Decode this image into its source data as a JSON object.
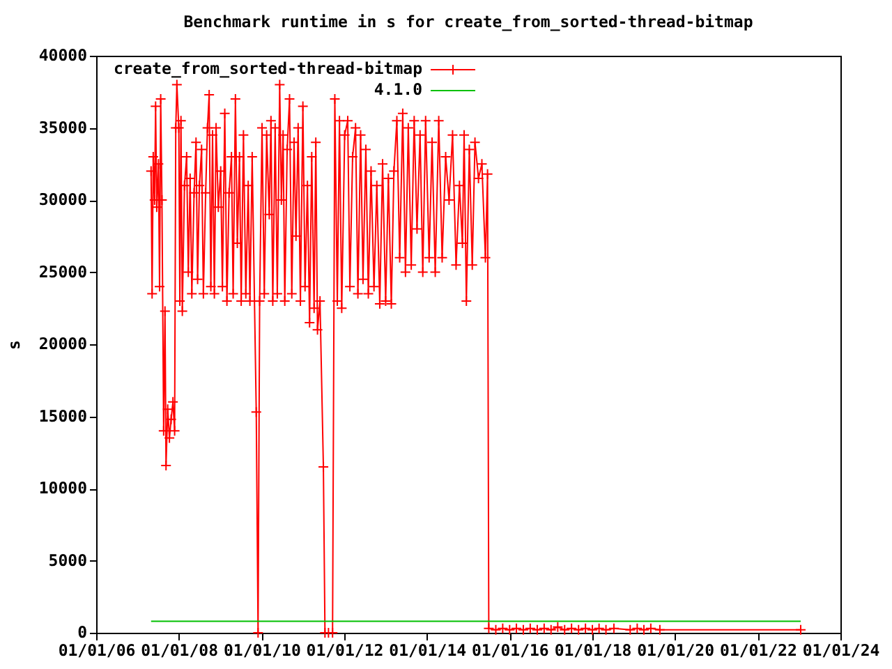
{
  "chart_data": {
    "type": "line",
    "title": "Benchmark runtime in s for create_from_sorted-thread-bitmap",
    "ylabel": "s",
    "xlim": [
      "2006-01-01",
      "2024-01-01"
    ],
    "xticks": [
      {
        "value": "2006-01-01",
        "label": "01/01/06"
      },
      {
        "value": "2008-01-01",
        "label": "01/01/08"
      },
      {
        "value": "2010-01-01",
        "label": "01/01/10"
      },
      {
        "value": "2012-01-01",
        "label": "01/01/12"
      },
      {
        "value": "2014-01-01",
        "label": "01/01/14"
      },
      {
        "value": "2016-01-01",
        "label": "01/01/16"
      },
      {
        "value": "2018-01-01",
        "label": "01/01/18"
      },
      {
        "value": "2020-01-01",
        "label": "01/01/20"
      },
      {
        "value": "2022-01-01",
        "label": "01/01/22"
      },
      {
        "value": "2024-01-01",
        "label": "01/01/24"
      }
    ],
    "ylim": [
      0,
      40000
    ],
    "yticks": [
      0,
      5000,
      10000,
      15000,
      20000,
      25000,
      30000,
      35000,
      40000
    ],
    "grid": false,
    "legend": "top left",
    "line_style": "solid",
    "series": [
      {
        "name": "create_from_sorted-thread-bitmap",
        "color": "#ff0000",
        "marker": "cross",
        "x": [
          "2007-05-01",
          "2007-05-10",
          "2007-05-20",
          "2007-06-01",
          "2007-06-10",
          "2007-06-20",
          "2007-07-05",
          "2007-07-15",
          "2007-07-25",
          "2007-08-05",
          "2007-08-20",
          "2007-09-01",
          "2007-09-10",
          "2007-09-25",
          "2007-10-10",
          "2007-10-25",
          "2007-11-10",
          "2007-11-25",
          "2007-12-05",
          "2007-12-15",
          "2008-01-01",
          "2008-01-10",
          "2008-01-20",
          "2008-02-01",
          "2008-02-20",
          "2008-03-10",
          "2008-03-25",
          "2008-04-10",
          "2008-04-25",
          "2008-05-15",
          "2008-06-01",
          "2008-06-15",
          "2008-07-01",
          "2008-07-20",
          "2008-08-05",
          "2008-08-25",
          "2008-09-10",
          "2008-09-25",
          "2008-10-10",
          "2008-10-25",
          "2008-11-10",
          "2008-11-25",
          "2008-12-15",
          "2009-01-05",
          "2009-01-20",
          "2009-02-10",
          "2009-03-01",
          "2009-03-20",
          "2009-04-10",
          "2009-04-25",
          "2009-05-15",
          "2009-06-01",
          "2009-06-20",
          "2009-07-05",
          "2009-07-25",
          "2009-08-15",
          "2009-09-05",
          "2009-09-20",
          "2009-10-10",
          "2009-11-15",
          "2009-12-01",
          "2009-12-15",
          "2010-01-05",
          "2010-01-25",
          "2010-02-15",
          "2010-03-10",
          "2010-03-25",
          "2010-04-10",
          "2010-05-01",
          "2010-05-20",
          "2010-06-10",
          "2010-06-25",
          "2010-07-10",
          "2010-07-25",
          "2010-08-15",
          "2010-09-05",
          "2010-09-25",
          "2010-10-15",
          "2010-11-01",
          "2010-11-20",
          "2010-12-10",
          "2011-01-01",
          "2011-01-20",
          "2011-02-10",
          "2011-03-01",
          "2011-03-20",
          "2011-04-10",
          "2011-04-25",
          "2011-05-10",
          "2011-06-01",
          "2011-07-01",
          "2011-07-15",
          "2011-08-15",
          "2011-09-20",
          "2011-10-10",
          "2011-11-01",
          "2011-11-20",
          "2011-12-10",
          "2012-01-05",
          "2012-02-01",
          "2012-02-20",
          "2012-03-15",
          "2012-04-10",
          "2012-05-01",
          "2012-05-25",
          "2012-06-15",
          "2012-07-10",
          "2012-08-01",
          "2012-08-25",
          "2012-09-20",
          "2012-10-15",
          "2012-11-10",
          "2012-12-05",
          "2013-01-01",
          "2013-01-25",
          "2013-02-20",
          "2013-03-15",
          "2013-04-10",
          "2013-05-05",
          "2013-06-01",
          "2013-06-25",
          "2013-07-20",
          "2013-08-15",
          "2013-09-10",
          "2013-10-05",
          "2013-11-01",
          "2013-11-25",
          "2013-12-20",
          "2014-01-20",
          "2014-02-15",
          "2014-03-15",
          "2014-04-15",
          "2014-05-15",
          "2014-06-15",
          "2014-07-15",
          "2014-08-15",
          "2014-09-15",
          "2014-10-15",
          "2014-11-10",
          "2014-11-25",
          "2014-12-15",
          "2015-01-10",
          "2015-02-05",
          "2015-03-01",
          "2015-04-01",
          "2015-05-01",
          "2015-06-01",
          "2015-06-20",
          "2015-07-01",
          "2015-09-01",
          "2015-11-01",
          "2016-01-01",
          "2016-03-01",
          "2016-05-01",
          "2016-07-01",
          "2016-09-01",
          "2016-11-01",
          "2017-01-01",
          "2017-03-01",
          "2017-05-01",
          "2017-07-01",
          "2017-09-01",
          "2017-11-01",
          "2018-01-01",
          "2018-03-01",
          "2018-05-01",
          "2018-07-10",
          "2018-12-01",
          "2019-02-01",
          "2019-04-01",
          "2019-06-01",
          "2019-08-20",
          "2023-01-15"
        ],
        "values": [
          32000,
          23500,
          33000,
          30000,
          36500,
          29500,
          32500,
          24000,
          37000,
          30000,
          14000,
          22300,
          11600,
          15500,
          13500,
          14800,
          16000,
          14000,
          35000,
          38000,
          35000,
          23000,
          35500,
          22300,
          31000,
          33000,
          25000,
          31500,
          23500,
          30500,
          34000,
          24500,
          31000,
          33500,
          23500,
          30500,
          35000,
          37300,
          24000,
          34500,
          23500,
          35000,
          29500,
          32000,
          24000,
          36000,
          23000,
          30500,
          33000,
          23500,
          37000,
          27000,
          33000,
          23000,
          34500,
          23500,
          31000,
          23000,
          33000,
          15300,
          0,
          23000,
          35000,
          23500,
          34500,
          29000,
          35500,
          23000,
          35000,
          23500,
          38000,
          30000,
          34500,
          23000,
          33500,
          37000,
          23500,
          34000,
          27500,
          35000,
          23000,
          36500,
          24000,
          31000,
          21500,
          33000,
          22500,
          34000,
          21000,
          23000,
          11500,
          0,
          0,
          0,
          37000,
          23000,
          35500,
          22500,
          34500,
          35500,
          24000,
          33000,
          35000,
          23500,
          34500,
          24500,
          33500,
          23500,
          32000,
          24000,
          31000,
          22800,
          32500,
          23000,
          31500,
          22800,
          32000,
          35500,
          26000,
          36000,
          25000,
          35000,
          25500,
          35500,
          28000,
          34500,
          25000,
          35500,
          26000,
          34000,
          25000,
          35500,
          26000,
          33000,
          30000,
          34500,
          25500,
          31000,
          27000,
          34500,
          23000,
          33500,
          25500,
          34000,
          31500,
          32500,
          26000,
          31800,
          300,
          200,
          300,
          200,
          300,
          200,
          300,
          200,
          300,
          200,
          400,
          200,
          300,
          200,
          300,
          200,
          300,
          200,
          300,
          200,
          300,
          200,
          300,
          200,
          200
        ]
      },
      {
        "name": "4.1.0",
        "color": "#00c000",
        "x": [
          "2007-05-01",
          "2023-01-15"
        ],
        "values": [
          800,
          800
        ]
      }
    ]
  }
}
